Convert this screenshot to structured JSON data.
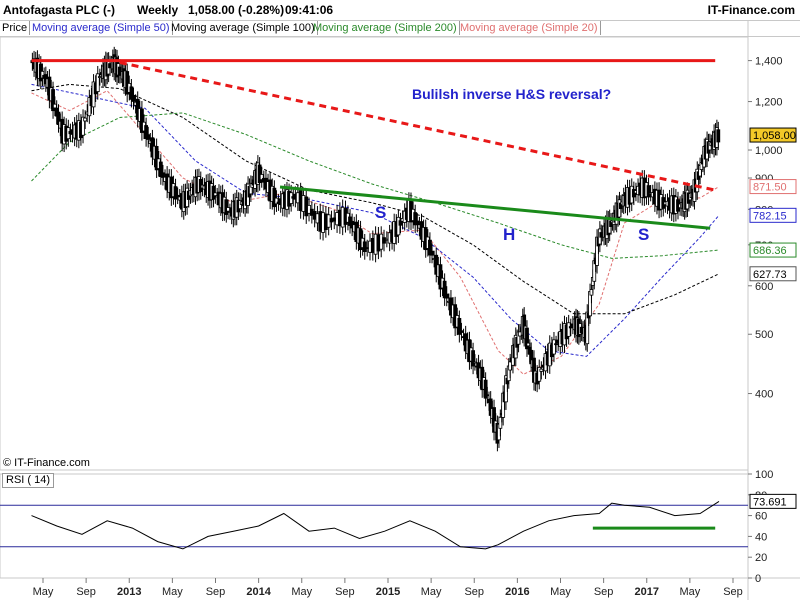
{
  "header": {
    "instrument": "Antofagasta PLC (-)",
    "period": "Weekly",
    "quote": "1,058.00 (-0.28%)",
    "time": "09:41:06",
    "brand": "IT-Finance.com"
  },
  "legend": [
    {
      "label": "Price",
      "color": "#000000"
    },
    {
      "label": "Moving average (Simple 50)",
      "color": "#2a2acc"
    },
    {
      "label": "Moving average (Simple 100)",
      "color": "#000000"
    },
    {
      "label": "Moving average (Simple 200)",
      "color": "#2a8a2a"
    },
    {
      "label": "Moving average (Simple 20)",
      "color": "#e07070"
    }
  ],
  "copyright": "© IT-Finance.com",
  "annotations": {
    "title": "Bulilsh inverse H&S reversal?",
    "left_shoulder": "S",
    "head": "H",
    "right_shoulder": "S"
  },
  "chart_data": [
    {
      "type": "candlestick",
      "title": "Antofagasta PLC (-) Weekly",
      "y_scale": "log",
      "ylim": [
        300,
        1530
      ],
      "y_ticks": [
        "1,400",
        "1,200",
        "1,000",
        "900",
        "800",
        "700",
        "600",
        "500",
        "400"
      ],
      "x_labels": [
        "May",
        "Sep",
        "2013",
        "May",
        "Sep",
        "2014",
        "May",
        "Sep",
        "2015",
        "May",
        "Sep",
        "2016",
        "May",
        "Sep",
        "2017",
        "May",
        "Sep"
      ],
      "series": [
        {
          "name": "Price",
          "color": "#000000",
          "points": [
            [
              2012.3,
              1400
            ],
            [
              2012.42,
              1300
            ],
            [
              2012.55,
              1060
            ],
            [
              2012.7,
              1080
            ],
            [
              2012.85,
              1330
            ],
            [
              2012.95,
              1390
            ],
            [
              2013.05,
              1300
            ],
            [
              2013.2,
              1080
            ],
            [
              2013.35,
              900
            ],
            [
              2013.5,
              820
            ],
            [
              2013.62,
              880
            ],
            [
              2013.75,
              850
            ],
            [
              2013.88,
              790
            ],
            [
              2014.0,
              830
            ],
            [
              2014.1,
              920
            ],
            [
              2014.25,
              820
            ],
            [
              2014.4,
              840
            ],
            [
              2014.6,
              760
            ],
            [
              2014.8,
              780
            ],
            [
              2014.95,
              690
            ],
            [
              2015.15,
              720
            ],
            [
              2015.3,
              800
            ],
            [
              2015.45,
              700
            ],
            [
              2015.6,
              570
            ],
            [
              2015.75,
              480
            ],
            [
              2015.88,
              420
            ],
            [
              2016.0,
              340
            ],
            [
              2016.1,
              450
            ],
            [
              2016.2,
              520
            ],
            [
              2016.3,
              420
            ],
            [
              2016.45,
              480
            ],
            [
              2016.6,
              520
            ],
            [
              2016.7,
              500
            ],
            [
              2016.8,
              720
            ],
            [
              2016.9,
              760
            ],
            [
              2017.0,
              830
            ],
            [
              2017.15,
              870
            ],
            [
              2017.3,
              820
            ],
            [
              2017.45,
              810
            ],
            [
              2017.55,
              850
            ],
            [
              2017.65,
              1000
            ],
            [
              2017.75,
              1058
            ]
          ]
        },
        {
          "name": "Moving average (Simple 20)",
          "color": "#e07070",
          "points": [
            [
              2012.3,
              1240
            ],
            [
              2012.6,
              1160
            ],
            [
              2012.9,
              1250
            ],
            [
              2013.2,
              1060
            ],
            [
              2013.5,
              900
            ],
            [
              2013.9,
              820
            ],
            [
              2014.3,
              850
            ],
            [
              2014.7,
              800
            ],
            [
              2015.0,
              730
            ],
            [
              2015.4,
              740
            ],
            [
              2015.7,
              620
            ],
            [
              2016.0,
              470
            ],
            [
              2016.2,
              430
            ],
            [
              2016.5,
              460
            ],
            [
              2016.8,
              560
            ],
            [
              2017.0,
              760
            ],
            [
              2017.3,
              830
            ],
            [
              2017.6,
              835
            ],
            [
              2017.75,
              871.5
            ]
          ]
        },
        {
          "name": "Moving average (Simple 50)",
          "color": "#2a2acc",
          "points": [
            [
              2012.3,
              1280
            ],
            [
              2012.7,
              1230
            ],
            [
              2013.2,
              1170
            ],
            [
              2013.6,
              960
            ],
            [
              2014.0,
              850
            ],
            [
              2014.5,
              830
            ],
            [
              2015.0,
              790
            ],
            [
              2015.4,
              720
            ],
            [
              2015.8,
              620
            ],
            [
              2016.1,
              530
            ],
            [
              2016.4,
              470
            ],
            [
              2016.7,
              460
            ],
            [
              2017.0,
              530
            ],
            [
              2017.3,
              620
            ],
            [
              2017.6,
              720
            ],
            [
              2017.75,
              782.15
            ]
          ]
        },
        {
          "name": "Moving average (Simple 100)",
          "color": "#000000",
          "points": [
            [
              2012.3,
              1250
            ],
            [
              2012.6,
              1280
            ],
            [
              2013.0,
              1260
            ],
            [
              2013.5,
              1130
            ],
            [
              2014.0,
              960
            ],
            [
              2014.5,
              860
            ],
            [
              2015.0,
              820
            ],
            [
              2015.4,
              780
            ],
            [
              2015.8,
              700
            ],
            [
              2016.2,
              610
            ],
            [
              2016.6,
              540
            ],
            [
              2017.0,
              540
            ],
            [
              2017.4,
              580
            ],
            [
              2017.75,
              627.73
            ]
          ]
        },
        {
          "name": "Moving average (Simple 200)",
          "color": "#2a8a2a",
          "points": [
            [
              2012.3,
              890
            ],
            [
              2012.6,
              1030
            ],
            [
              2013.0,
              1130
            ],
            [
              2013.5,
              1150
            ],
            [
              2014.0,
              1060
            ],
            [
              2014.5,
              960
            ],
            [
              2015.0,
              880
            ],
            [
              2015.5,
              820
            ],
            [
              2016.0,
              760
            ],
            [
              2016.5,
              700
            ],
            [
              2016.9,
              665
            ],
            [
              2017.3,
              672
            ],
            [
              2017.75,
              686.36
            ]
          ]
        }
      ],
      "trendlines": [
        {
          "name": "resistance",
          "color": "#e81818",
          "style": "solid",
          "from": [
            2012.3,
            1400
          ],
          "to": [
            2017.72,
            1400
          ]
        },
        {
          "name": "downtrend",
          "color": "#e81818",
          "style": "dashed",
          "from": [
            2013.0,
            1390
          ],
          "to": [
            2017.72,
            860
          ]
        },
        {
          "name": "neckline",
          "color": "#1a8a1a",
          "style": "solid",
          "from": [
            2014.27,
            870
          ],
          "to": [
            2017.68,
            745
          ]
        }
      ],
      "last_value_labels": [
        {
          "value": "1,058.00",
          "bg": "#f3c928",
          "border": "#000000",
          "color": "#000000"
        },
        {
          "value": "871.50",
          "bg": "#ffffff",
          "border": "#e07070",
          "color": "#e07070"
        },
        {
          "value": "782.15",
          "bg": "#ffffff",
          "border": "#2a2acc",
          "color": "#2a2acc"
        },
        {
          "value": "686.36",
          "bg": "#ffffff",
          "border": "#2a8a2a",
          "color": "#2a8a2a"
        },
        {
          "value": "627.73",
          "bg": "#ffffff",
          "border": "#555555",
          "color": "#000000"
        }
      ]
    },
    {
      "type": "line",
      "title": "RSI ( 14)",
      "ylim": [
        0,
        100
      ],
      "y_ticks": [
        "100",
        "80",
        "60",
        "40",
        "20",
        "0"
      ],
      "reference_lines": [
        70,
        30
      ],
      "series": [
        {
          "name": "RSI ( 14)",
          "color": "#000000",
          "points": [
            [
              2012.3,
              60
            ],
            [
              2012.5,
              50
            ],
            [
              2012.7,
              42
            ],
            [
              2012.9,
              55
            ],
            [
              2013.1,
              48
            ],
            [
              2013.3,
              35
            ],
            [
              2013.5,
              28
            ],
            [
              2013.7,
              40
            ],
            [
              2013.9,
              45
            ],
            [
              2014.1,
              50
            ],
            [
              2014.3,
              62
            ],
            [
              2014.5,
              45
            ],
            [
              2014.7,
              48
            ],
            [
              2014.9,
              38
            ],
            [
              2015.1,
              45
            ],
            [
              2015.3,
              55
            ],
            [
              2015.5,
              45
            ],
            [
              2015.7,
              30
            ],
            [
              2015.9,
              28
            ],
            [
              2016.0,
              32
            ],
            [
              2016.2,
              45
            ],
            [
              2016.4,
              55
            ],
            [
              2016.6,
              60
            ],
            [
              2016.8,
              62
            ],
            [
              2016.9,
              72
            ],
            [
              2017.0,
              70
            ],
            [
              2017.2,
              68
            ],
            [
              2017.4,
              60
            ],
            [
              2017.6,
              62
            ],
            [
              2017.75,
              73.691
            ]
          ]
        }
      ],
      "trendlines": [
        {
          "name": "rsi-support",
          "color": "#1a8a1a",
          "style": "solid",
          "from": [
            2016.75,
            48
          ],
          "to": [
            2017.72,
            48
          ]
        }
      ],
      "last_value_labels": [
        {
          "value": "73.691",
          "bg": "#ffffff",
          "border": "#000000",
          "color": "#000000"
        }
      ]
    }
  ]
}
